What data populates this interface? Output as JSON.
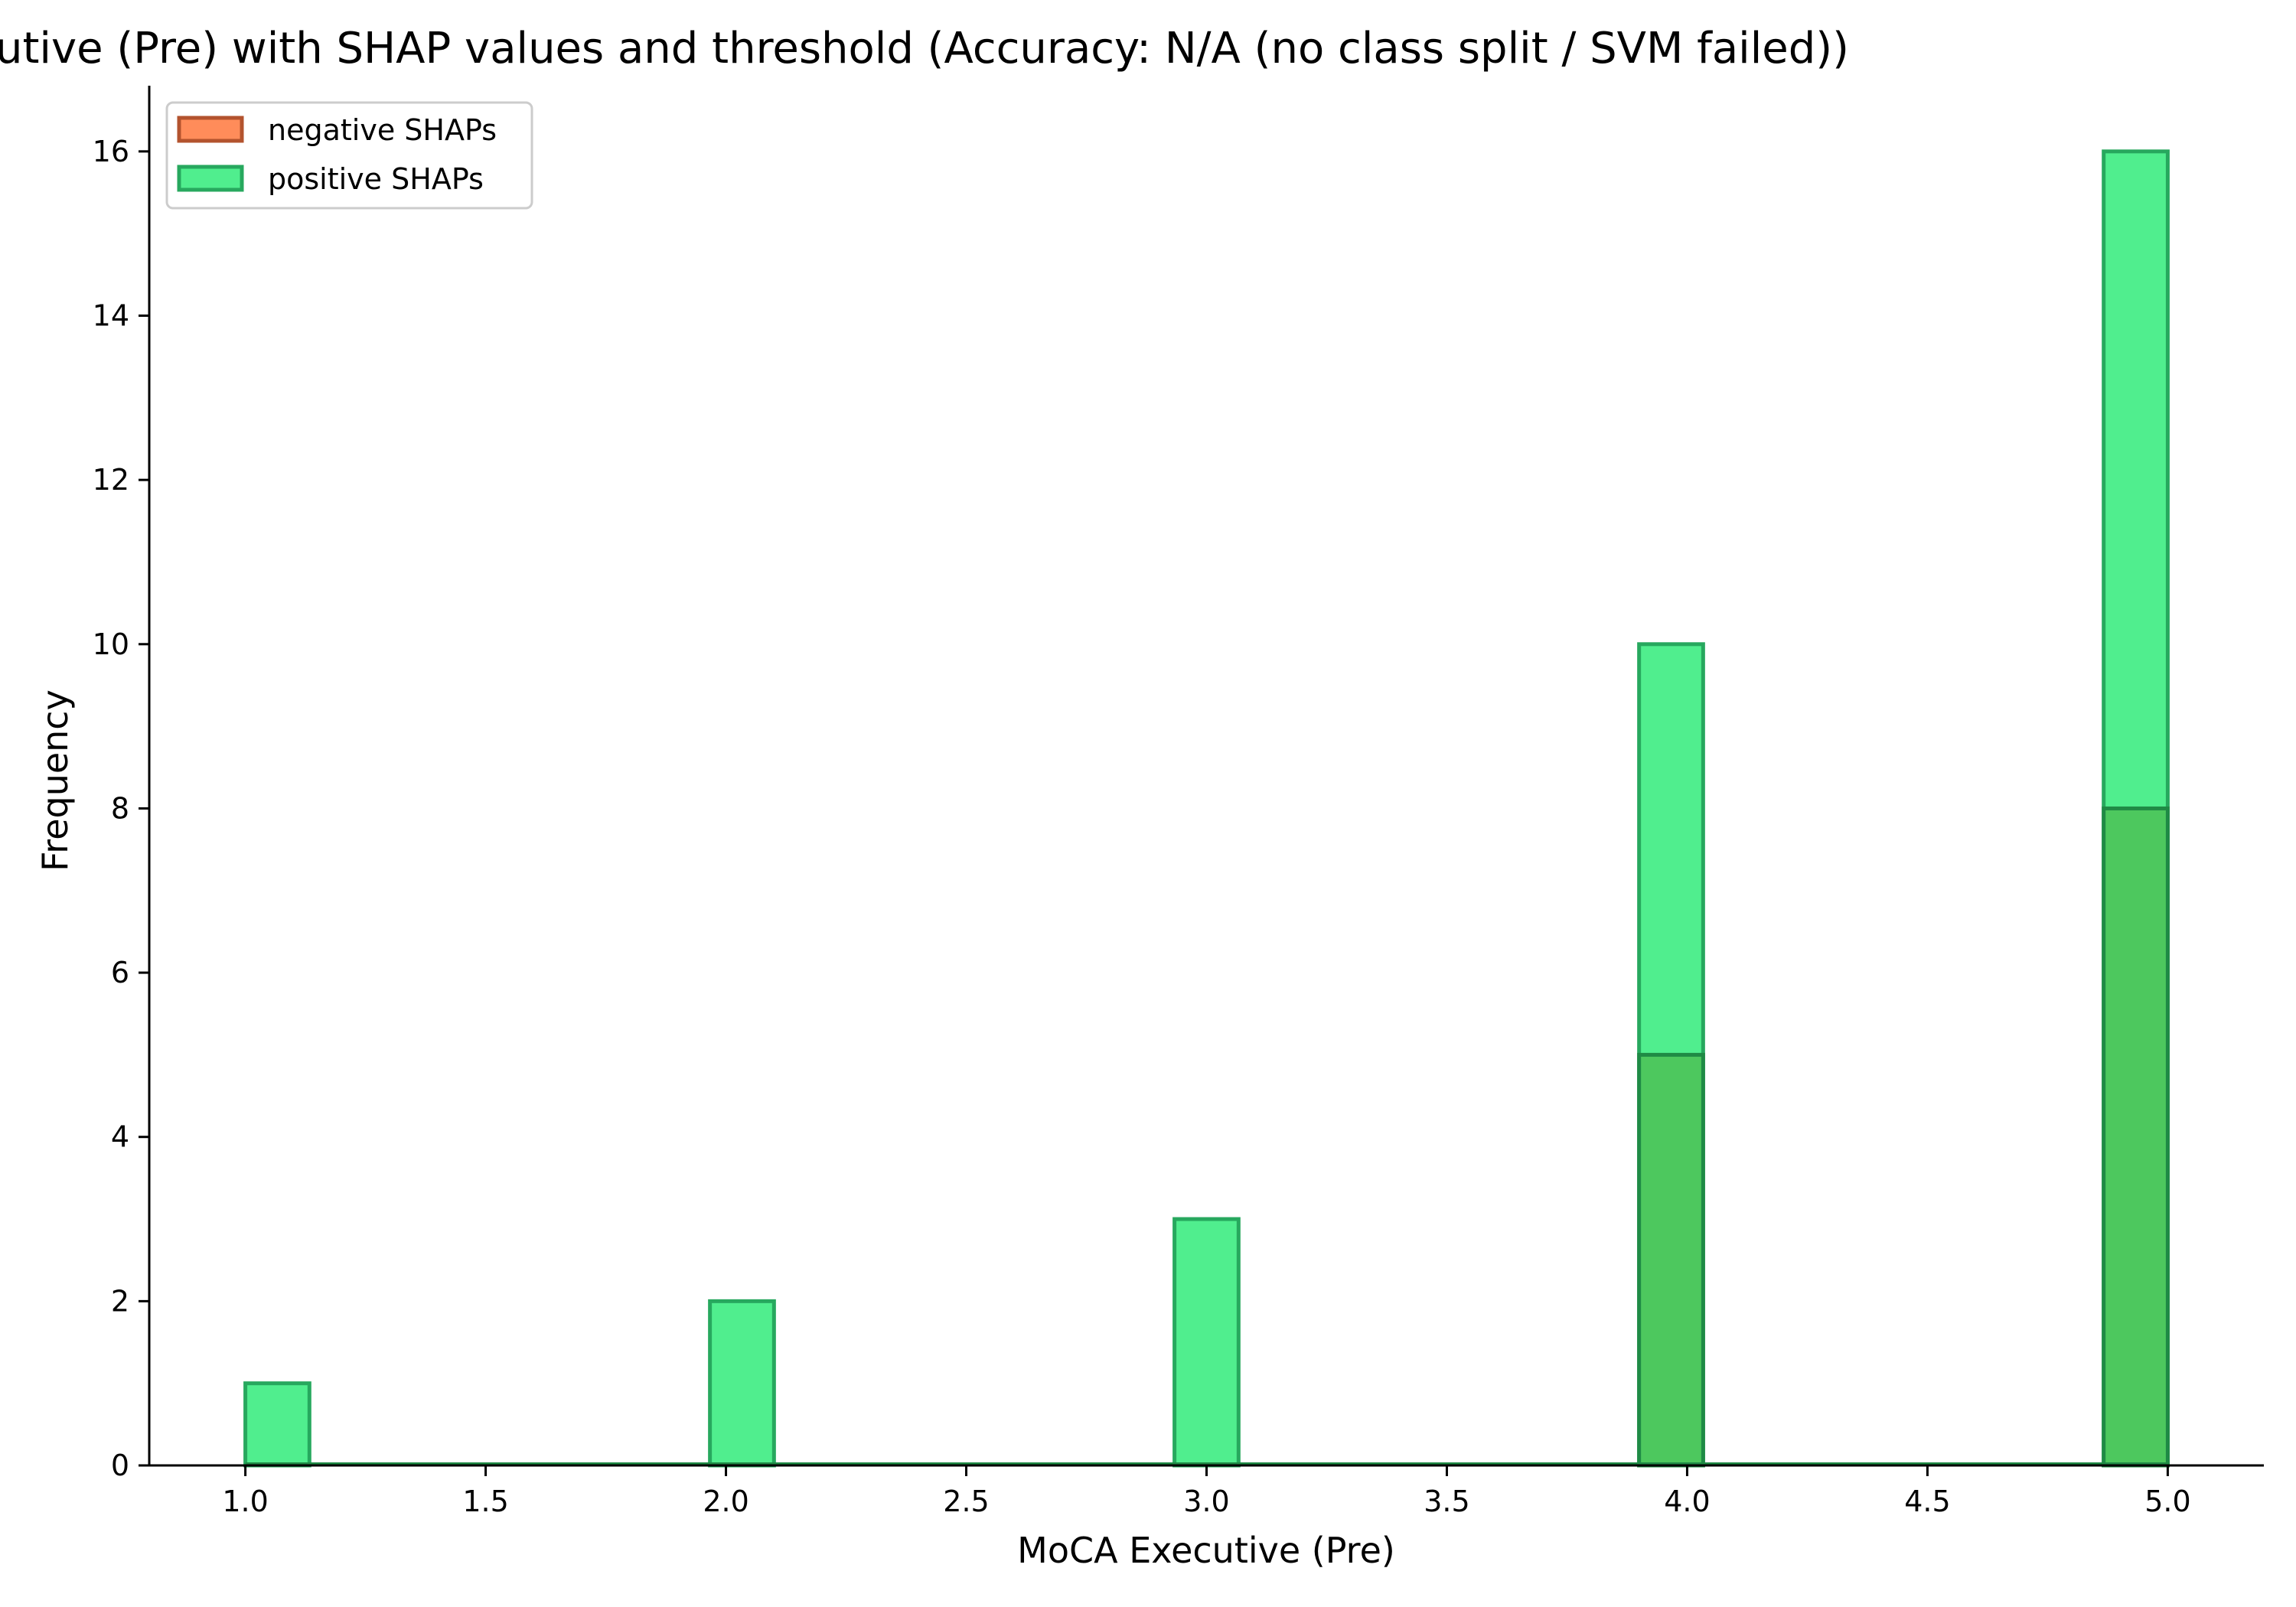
{
  "chart_data": {
    "type": "bar",
    "title": "Histogram of MoCA Executive (Pre) with SHAP values and threshold (Accuracy: N/A (no class split / SVM failed))",
    "xlabel": "MoCA Executive (Pre)",
    "ylabel": "Frequency",
    "xlim": [
      0.8,
      5.2
    ],
    "ylim": [
      0,
      16.8
    ],
    "xticks": [
      "1.0",
      "1.5",
      "2.0",
      "2.5",
      "3.0",
      "3.5",
      "4.0",
      "4.5",
      "5.0"
    ],
    "yticks": [
      "0",
      "2",
      "4",
      "6",
      "8",
      "10",
      "12",
      "14",
      "16"
    ],
    "legend_position": "upper-left",
    "bin_width": 0.1333,
    "series": [
      {
        "name": "positive SHAPs",
        "fill": "#50ee8e",
        "edge": "#27a85e",
        "bins": [
          {
            "x_start": 1.0,
            "count": 1
          },
          {
            "x_start": 1.9667,
            "count": 2
          },
          {
            "x_start": 2.9333,
            "count": 3
          },
          {
            "x_start": 3.9,
            "count": 10
          },
          {
            "x_start": 4.8667,
            "count": 16
          }
        ]
      },
      {
        "name": "negative SHAPs",
        "fill": "#ff8c5a",
        "edge": "#b3532e",
        "bins": [
          {
            "x_start": 3.9,
            "count": 5
          },
          {
            "x_start": 4.8667,
            "count": 8
          }
        ]
      }
    ],
    "overlap_color": "#4dc85e",
    "overlap_edge": "#1f8a45"
  }
}
